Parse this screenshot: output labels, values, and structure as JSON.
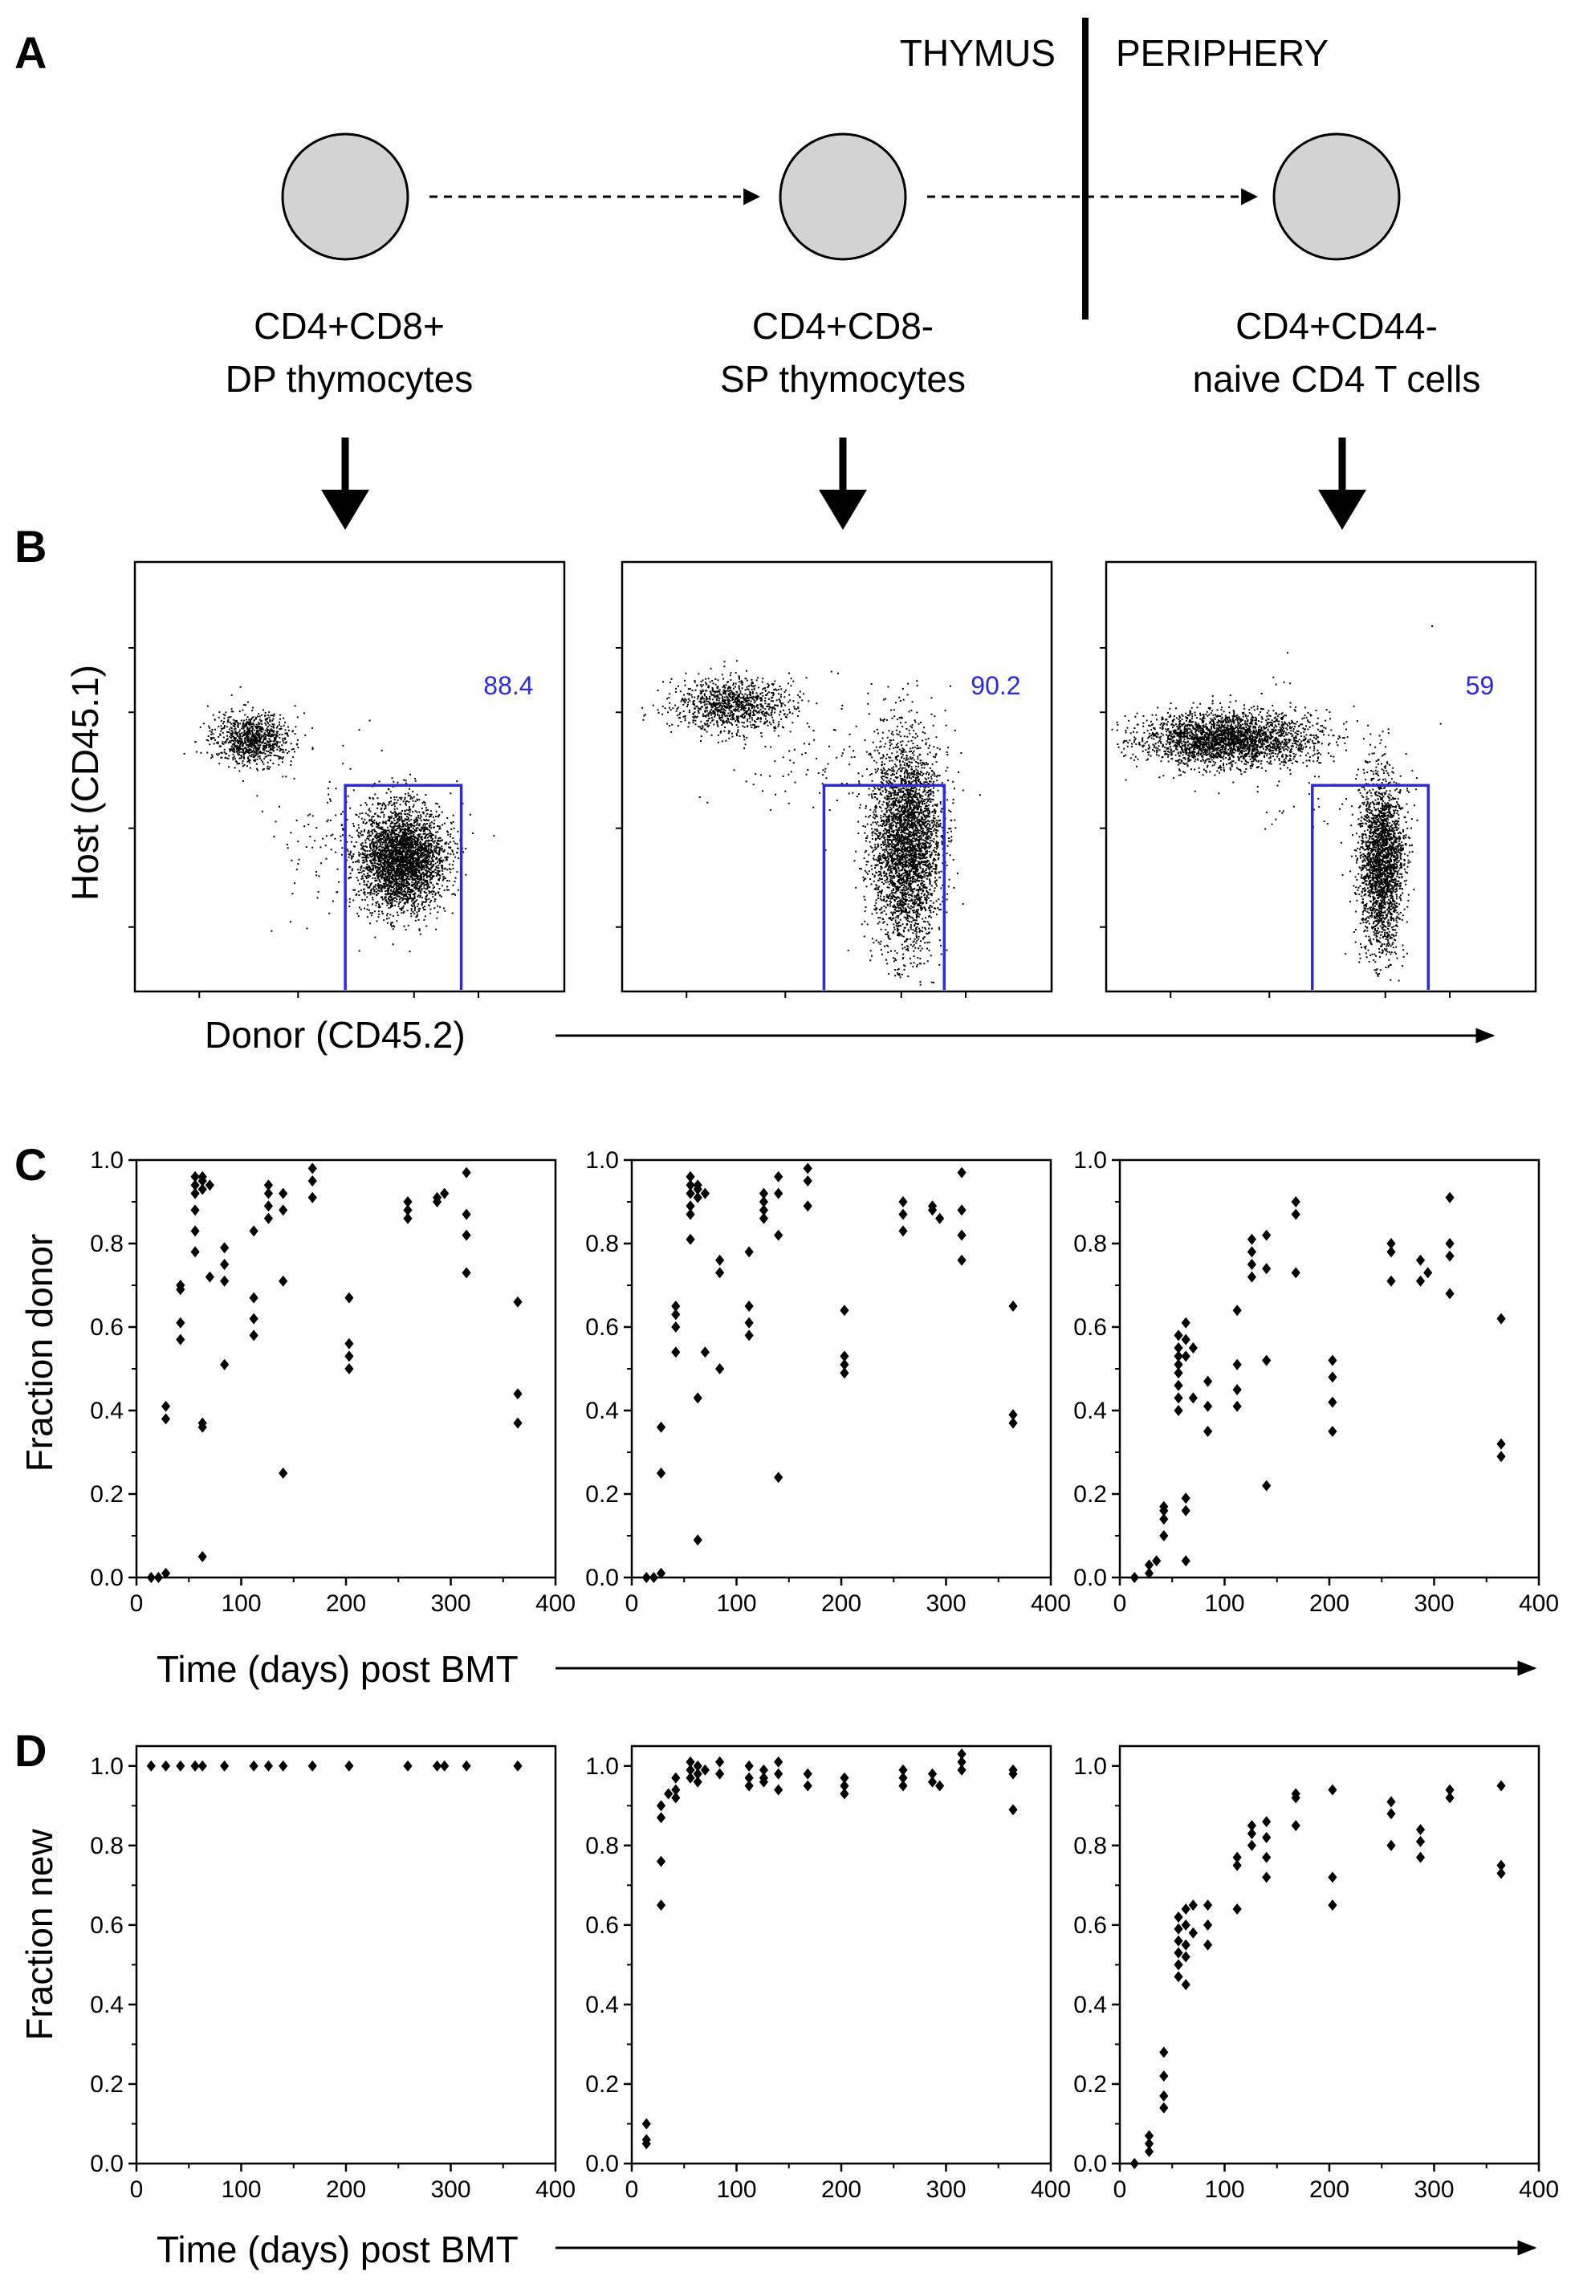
{
  "panel_letters": [
    "A",
    "B",
    "C",
    "D"
  ],
  "schema": {
    "region_left": "THYMUS",
    "region_right": "PERIPHERY",
    "cells": [
      {
        "line1": "CD4+CD8+",
        "line2": "DP thymocytes"
      },
      {
        "line1": "CD4+CD8-",
        "line2": "SP thymocytes"
      },
      {
        "line1": "CD4+CD44-",
        "line2": "naive CD4 T cells"
      }
    ]
  },
  "colors": {
    "cell_fill": "#d3d3d3",
    "gate": "#2a2ae0",
    "points": "#000000"
  },
  "flow": {
    "ylabel": "Host (CD45.1)",
    "xlabel": "Donor (CD45.2)",
    "gates": [
      {
        "value": "88.4",
        "x_range": [
          0.49,
          0.76
        ],
        "y_top": 0.52
      },
      {
        "value": "90.2",
        "x_range": [
          0.47,
          0.75
        ],
        "y_top": 0.52
      },
      {
        "value": "59",
        "x_range": [
          0.48,
          0.75
        ],
        "y_top": 0.52
      }
    ]
  },
  "chart_data": [
    {
      "id": "C1",
      "type": "scatter",
      "ylabel": "Fraction donor",
      "xlabel": "Time (days) post BMT",
      "xlim": [
        0,
        400
      ],
      "ylim": [
        0,
        1.0
      ],
      "xticks": [
        "0",
        "100",
        "200",
        "300",
        "400"
      ],
      "yticks": [
        "0.0",
        "0.2",
        "0.4",
        "0.6",
        "0.8",
        "1.0"
      ],
      "points": [
        [
          14,
          0.0
        ],
        [
          21,
          0.0
        ],
        [
          28,
          0.01
        ],
        [
          28,
          0.41
        ],
        [
          28,
          0.38
        ],
        [
          42,
          0.69
        ],
        [
          42,
          0.7
        ],
        [
          42,
          0.61
        ],
        [
          42,
          0.57
        ],
        [
          56,
          0.96
        ],
        [
          56,
          0.94
        ],
        [
          56,
          0.92
        ],
        [
          56,
          0.88
        ],
        [
          56,
          0.83
        ],
        [
          56,
          0.78
        ],
        [
          63,
          0.96
        ],
        [
          63,
          0.95
        ],
        [
          63,
          0.93
        ],
        [
          63,
          0.37
        ],
        [
          63,
          0.36
        ],
        [
          63,
          0.05
        ],
        [
          70,
          0.94
        ],
        [
          70,
          0.72
        ],
        [
          84,
          0.79
        ],
        [
          84,
          0.75
        ],
        [
          84,
          0.71
        ],
        [
          84,
          0.51
        ],
        [
          112,
          0.83
        ],
        [
          112,
          0.67
        ],
        [
          112,
          0.62
        ],
        [
          112,
          0.58
        ],
        [
          126,
          0.94
        ],
        [
          126,
          0.92
        ],
        [
          126,
          0.89
        ],
        [
          126,
          0.86
        ],
        [
          140,
          0.92
        ],
        [
          140,
          0.88
        ],
        [
          140,
          0.71
        ],
        [
          140,
          0.25
        ],
        [
          168,
          0.98
        ],
        [
          168,
          0.95
        ],
        [
          168,
          0.91
        ],
        [
          203,
          0.67
        ],
        [
          203,
          0.56
        ],
        [
          203,
          0.53
        ],
        [
          203,
          0.5
        ],
        [
          259,
          0.9
        ],
        [
          259,
          0.88
        ],
        [
          259,
          0.86
        ],
        [
          287,
          0.91
        ],
        [
          287,
          0.9
        ],
        [
          294,
          0.92
        ],
        [
          315,
          0.97
        ],
        [
          315,
          0.87
        ],
        [
          315,
          0.82
        ],
        [
          315,
          0.73
        ],
        [
          364,
          0.66
        ],
        [
          364,
          0.44
        ],
        [
          364,
          0.37
        ]
      ]
    },
    {
      "id": "C2",
      "type": "scatter",
      "ylabel": "",
      "xlabel": "Time (days) post BMT",
      "xlim": [
        0,
        400
      ],
      "ylim": [
        0,
        1.0
      ],
      "xticks": [
        "0",
        "100",
        "200",
        "300",
        "400"
      ],
      "yticks": [
        "0.0",
        "0.2",
        "0.4",
        "0.6",
        "0.8",
        "1.0"
      ],
      "points": [
        [
          14,
          0.0
        ],
        [
          21,
          0.0
        ],
        [
          28,
          0.01
        ],
        [
          28,
          0.36
        ],
        [
          28,
          0.25
        ],
        [
          42,
          0.65
        ],
        [
          42,
          0.63
        ],
        [
          42,
          0.6
        ],
        [
          42,
          0.54
        ],
        [
          56,
          0.96
        ],
        [
          56,
          0.94
        ],
        [
          56,
          0.92
        ],
        [
          56,
          0.89
        ],
        [
          56,
          0.87
        ],
        [
          56,
          0.81
        ],
        [
          63,
          0.94
        ],
        [
          63,
          0.93
        ],
        [
          63,
          0.91
        ],
        [
          63,
          0.43
        ],
        [
          63,
          0.09
        ],
        [
          70,
          0.92
        ],
        [
          70,
          0.54
        ],
        [
          84,
          0.76
        ],
        [
          84,
          0.73
        ],
        [
          84,
          0.5
        ],
        [
          112,
          0.78
        ],
        [
          112,
          0.65
        ],
        [
          112,
          0.61
        ],
        [
          112,
          0.58
        ],
        [
          126,
          0.92
        ],
        [
          126,
          0.9
        ],
        [
          126,
          0.88
        ],
        [
          126,
          0.86
        ],
        [
          140,
          0.96
        ],
        [
          140,
          0.92
        ],
        [
          140,
          0.82
        ],
        [
          140,
          0.24
        ],
        [
          168,
          0.98
        ],
        [
          168,
          0.95
        ],
        [
          168,
          0.89
        ],
        [
          203,
          0.64
        ],
        [
          203,
          0.53
        ],
        [
          203,
          0.51
        ],
        [
          203,
          0.49
        ],
        [
          259,
          0.9
        ],
        [
          259,
          0.87
        ],
        [
          259,
          0.83
        ],
        [
          287,
          0.89
        ],
        [
          287,
          0.88
        ],
        [
          294,
          0.86
        ],
        [
          315,
          0.97
        ],
        [
          315,
          0.88
        ],
        [
          315,
          0.82
        ],
        [
          315,
          0.76
        ],
        [
          364,
          0.65
        ],
        [
          364,
          0.39
        ],
        [
          364,
          0.37
        ]
      ]
    },
    {
      "id": "C3",
      "type": "scatter",
      "ylabel": "",
      "xlabel": "Time (days) post BMT",
      "xlim": [
        0,
        400
      ],
      "ylim": [
        0,
        1.0
      ],
      "xticks": [
        "0",
        "100",
        "200",
        "300",
        "400"
      ],
      "yticks": [
        "0.0",
        "0.2",
        "0.4",
        "0.6",
        "0.8",
        "1.0"
      ],
      "points": [
        [
          14,
          0.0
        ],
        [
          28,
          0.01
        ],
        [
          28,
          0.03
        ],
        [
          35,
          0.04
        ],
        [
          42,
          0.1
        ],
        [
          42,
          0.14
        ],
        [
          42,
          0.16
        ],
        [
          42,
          0.17
        ],
        [
          56,
          0.58
        ],
        [
          56,
          0.55
        ],
        [
          56,
          0.53
        ],
        [
          56,
          0.51
        ],
        [
          56,
          0.49
        ],
        [
          56,
          0.46
        ],
        [
          56,
          0.43
        ],
        [
          56,
          0.4
        ],
        [
          63,
          0.61
        ],
        [
          63,
          0.57
        ],
        [
          63,
          0.53
        ],
        [
          63,
          0.19
        ],
        [
          63,
          0.16
        ],
        [
          63,
          0.04
        ],
        [
          70,
          0.55
        ],
        [
          70,
          0.43
        ],
        [
          84,
          0.47
        ],
        [
          84,
          0.41
        ],
        [
          84,
          0.35
        ],
        [
          112,
          0.64
        ],
        [
          112,
          0.51
        ],
        [
          112,
          0.45
        ],
        [
          112,
          0.41
        ],
        [
          126,
          0.81
        ],
        [
          126,
          0.78
        ],
        [
          126,
          0.75
        ],
        [
          126,
          0.72
        ],
        [
          140,
          0.82
        ],
        [
          140,
          0.74
        ],
        [
          140,
          0.52
        ],
        [
          140,
          0.22
        ],
        [
          168,
          0.9
        ],
        [
          168,
          0.87
        ],
        [
          168,
          0.73
        ],
        [
          203,
          0.52
        ],
        [
          203,
          0.48
        ],
        [
          203,
          0.42
        ],
        [
          203,
          0.35
        ],
        [
          259,
          0.8
        ],
        [
          259,
          0.78
        ],
        [
          259,
          0.71
        ],
        [
          287,
          0.76
        ],
        [
          287,
          0.71
        ],
        [
          294,
          0.73
        ],
        [
          315,
          0.91
        ],
        [
          315,
          0.8
        ],
        [
          315,
          0.77
        ],
        [
          315,
          0.68
        ],
        [
          364,
          0.62
        ],
        [
          364,
          0.32
        ],
        [
          364,
          0.29
        ]
      ]
    },
    {
      "id": "D1",
      "type": "scatter",
      "ylabel": "Fraction new",
      "xlabel": "Time (days) post BMT",
      "xlim": [
        0,
        400
      ],
      "ylim": [
        0,
        1.05
      ],
      "xticks": [
        "0",
        "100",
        "200",
        "300",
        "400"
      ],
      "yticks": [
        "0.0",
        "0.2",
        "0.4",
        "0.6",
        "0.8",
        "1.0"
      ],
      "points": [
        [
          14,
          1.0
        ],
        [
          28,
          1.0
        ],
        [
          42,
          1.0
        ],
        [
          56,
          1.0
        ],
        [
          63,
          1.0
        ],
        [
          84,
          1.0
        ],
        [
          112,
          1.0
        ],
        [
          126,
          1.0
        ],
        [
          140,
          1.0
        ],
        [
          168,
          1.0
        ],
        [
          203,
          1.0
        ],
        [
          259,
          1.0
        ],
        [
          287,
          1.0
        ],
        [
          294,
          1.0
        ],
        [
          315,
          1.0
        ],
        [
          364,
          1.0
        ]
      ]
    },
    {
      "id": "D2",
      "type": "scatter",
      "ylabel": "",
      "xlabel": "Time (days) post BMT",
      "xlim": [
        0,
        400
      ],
      "ylim": [
        0,
        1.05
      ],
      "xticks": [
        "0",
        "100",
        "200",
        "300",
        "400"
      ],
      "yticks": [
        "0.0",
        "0.2",
        "0.4",
        "0.6",
        "0.8",
        "1.0"
      ],
      "points": [
        [
          14,
          0.1
        ],
        [
          14,
          0.06
        ],
        [
          14,
          0.05
        ],
        [
          28,
          0.9
        ],
        [
          28,
          0.87
        ],
        [
          28,
          0.76
        ],
        [
          28,
          0.65
        ],
        [
          35,
          0.93
        ],
        [
          42,
          0.97
        ],
        [
          42,
          0.94
        ],
        [
          42,
          0.92
        ],
        [
          56,
          1.01
        ],
        [
          56,
          0.99
        ],
        [
          56,
          0.97
        ],
        [
          63,
          1.0
        ],
        [
          63,
          0.98
        ],
        [
          63,
          0.96
        ],
        [
          70,
          0.99
        ],
        [
          84,
          1.01
        ],
        [
          84,
          0.98
        ],
        [
          112,
          1.0
        ],
        [
          112,
          0.97
        ],
        [
          112,
          0.95
        ],
        [
          126,
          0.99
        ],
        [
          126,
          0.97
        ],
        [
          126,
          0.96
        ],
        [
          140,
          1.01
        ],
        [
          140,
          0.98
        ],
        [
          140,
          0.94
        ],
        [
          168,
          0.98
        ],
        [
          168,
          0.95
        ],
        [
          203,
          0.97
        ],
        [
          203,
          0.95
        ],
        [
          203,
          0.93
        ],
        [
          259,
          0.99
        ],
        [
          259,
          0.97
        ],
        [
          259,
          0.95
        ],
        [
          287,
          0.98
        ],
        [
          287,
          0.96
        ],
        [
          294,
          0.95
        ],
        [
          315,
          1.03
        ],
        [
          315,
          1.01
        ],
        [
          315,
          0.99
        ],
        [
          364,
          0.99
        ],
        [
          364,
          0.98
        ],
        [
          364,
          0.89
        ]
      ]
    },
    {
      "id": "D3",
      "type": "scatter",
      "ylabel": "",
      "xlabel": "Time (days) post BMT",
      "xlim": [
        0,
        400
      ],
      "ylim": [
        0,
        1.05
      ],
      "xticks": [
        "0",
        "100",
        "200",
        "300",
        "400"
      ],
      "yticks": [
        "0.0",
        "0.2",
        "0.4",
        "0.6",
        "0.8",
        "1.0"
      ],
      "points": [
        [
          14,
          0.0
        ],
        [
          28,
          0.03
        ],
        [
          28,
          0.05
        ],
        [
          28,
          0.07
        ],
        [
          42,
          0.28
        ],
        [
          42,
          0.22
        ],
        [
          42,
          0.17
        ],
        [
          42,
          0.14
        ],
        [
          56,
          0.62
        ],
        [
          56,
          0.59
        ],
        [
          56,
          0.56
        ],
        [
          56,
          0.53
        ],
        [
          56,
          0.5
        ],
        [
          56,
          0.47
        ],
        [
          63,
          0.64
        ],
        [
          63,
          0.6
        ],
        [
          63,
          0.55
        ],
        [
          63,
          0.52
        ],
        [
          63,
          0.45
        ],
        [
          70,
          0.65
        ],
        [
          70,
          0.58
        ],
        [
          84,
          0.65
        ],
        [
          84,
          0.6
        ],
        [
          84,
          0.55
        ],
        [
          112,
          0.77
        ],
        [
          112,
          0.75
        ],
        [
          112,
          0.64
        ],
        [
          126,
          0.85
        ],
        [
          126,
          0.83
        ],
        [
          126,
          0.8
        ],
        [
          140,
          0.86
        ],
        [
          140,
          0.82
        ],
        [
          140,
          0.77
        ],
        [
          140,
          0.72
        ],
        [
          168,
          0.93
        ],
        [
          168,
          0.92
        ],
        [
          168,
          0.85
        ],
        [
          203,
          0.94
        ],
        [
          203,
          0.72
        ],
        [
          203,
          0.65
        ],
        [
          259,
          0.91
        ],
        [
          259,
          0.88
        ],
        [
          259,
          0.8
        ],
        [
          287,
          0.84
        ],
        [
          287,
          0.81
        ],
        [
          287,
          0.77
        ],
        [
          315,
          0.94
        ],
        [
          315,
          0.92
        ],
        [
          364,
          0.95
        ],
        [
          364,
          0.75
        ],
        [
          364,
          0.73
        ]
      ]
    }
  ]
}
